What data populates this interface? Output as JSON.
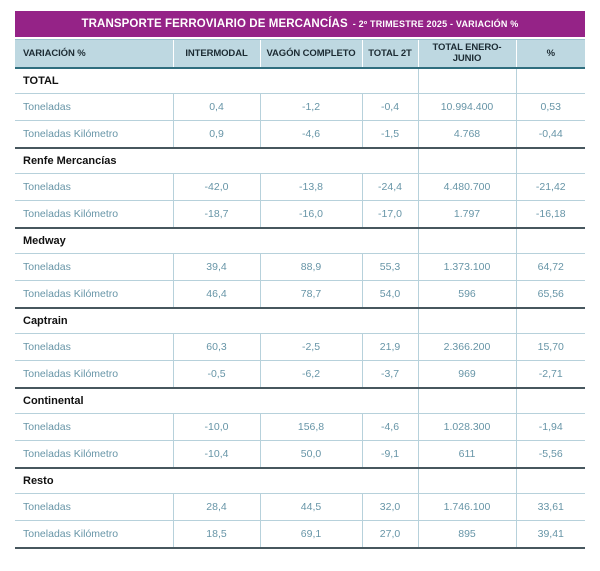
{
  "title": {
    "main": "TRANSPORTE FERROVIARIO DE MERCANCÍAS",
    "sub": "- 2º TRIMESTRE 2025 - VARIACIÓN %"
  },
  "colors": {
    "title_bg": "#952387",
    "header_bg": "#bed8e1",
    "data_text": "#6795a7",
    "light_border": "#b7d1db",
    "dark_border": "#47575e",
    "header_bottom_border": "#2f6e7e"
  },
  "chart_data": {
    "type": "table",
    "title": "TRANSPORTE FERROVIARIO DE MERCANCÍAS - 2º TRIMESTRE 2025 - VARIACIÓN %",
    "columns": [
      "VARIACIÓN %",
      "INTERMODAL",
      "VAGÓN COMPLETO",
      "TOTAL 2T",
      "TOTAL ENERO-JUNIO",
      "%"
    ],
    "sections": [
      {
        "name": "TOTAL",
        "rows": [
          {
            "label": "Toneladas",
            "values": [
              "0,4",
              "-1,2",
              "-0,4",
              "10.994.400",
              "0,53"
            ]
          },
          {
            "label": "Toneladas Kilómetro",
            "values": [
              "0,9",
              "-4,6",
              "-1,5",
              "4.768",
              "-0,44"
            ]
          }
        ]
      },
      {
        "name": "Renfe Mercancías",
        "rows": [
          {
            "label": "Toneladas",
            "values": [
              "-42,0",
              "-13,8",
              "-24,4",
              "4.480.700",
              "-21,42"
            ]
          },
          {
            "label": "Toneladas Kilómetro",
            "values": [
              "-18,7",
              "-16,0",
              "-17,0",
              "1.797",
              "-16,18"
            ]
          }
        ]
      },
      {
        "name": "Medway",
        "rows": [
          {
            "label": "Toneladas",
            "values": [
              "39,4",
              "88,9",
              "55,3",
              "1.373.100",
              "64,72"
            ]
          },
          {
            "label": "Toneladas Kilómetro",
            "values": [
              "46,4",
              "78,7",
              "54,0",
              "596",
              "65,56"
            ]
          }
        ]
      },
      {
        "name": "Captrain",
        "rows": [
          {
            "label": "Toneladas",
            "values": [
              "60,3",
              "-2,5",
              "21,9",
              "2.366.200",
              "15,70"
            ]
          },
          {
            "label": "Toneladas Kilómetro",
            "values": [
              "-0,5",
              "-6,2",
              "-3,7",
              "969",
              "-2,71"
            ]
          }
        ]
      },
      {
        "name": "Continental",
        "rows": [
          {
            "label": "Toneladas",
            "values": [
              "-10,0",
              "156,8",
              "-4,6",
              "1.028.300",
              "-1,94"
            ]
          },
          {
            "label": "Toneladas Kilómetro",
            "values": [
              "-10,4",
              "50,0",
              "-9,1",
              "611",
              "-5,56"
            ]
          }
        ]
      },
      {
        "name": "Resto",
        "rows": [
          {
            "label": "Toneladas",
            "values": [
              "28,4",
              "44,5",
              "32,0",
              "1.746.100",
              "33,61"
            ]
          },
          {
            "label": "Toneladas Kilómetro",
            "values": [
              "18,5",
              "69,1",
              "27,0",
              "895",
              "39,41"
            ]
          }
        ]
      }
    ]
  }
}
